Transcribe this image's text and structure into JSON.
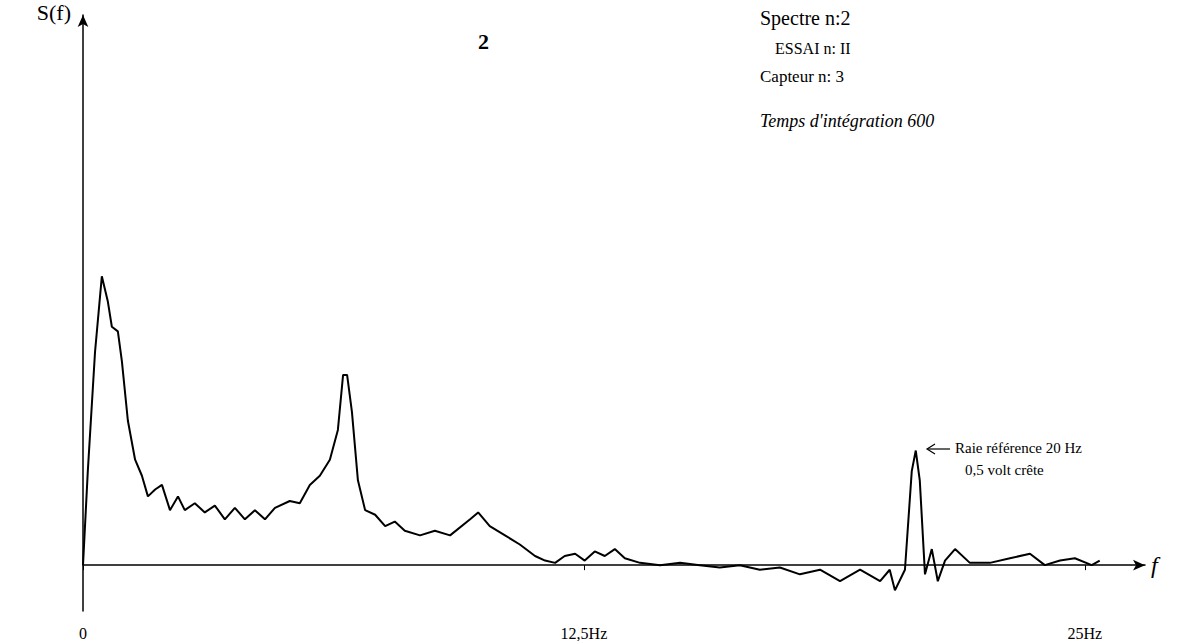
{
  "chart_data": {
    "type": "line",
    "x_label": "f",
    "y_label": "S(f)",
    "annotations": [
      "2",
      "Spectre n:2",
      "ESSAI n: II",
      "Capteur n: 3",
      "Temps d'intégration 600",
      "Raie référence 20 Hz",
      "0,5 volt crête"
    ],
    "x": [
      0,
      0.12,
      0.3,
      0.47,
      0.62,
      0.72,
      0.87,
      0.97,
      1.12,
      1.3,
      1.47,
      1.62,
      1.8,
      1.97,
      2.17,
      2.37,
      2.54,
      2.79,
      3.04,
      3.29,
      3.54,
      3.79,
      4.04,
      4.29,
      4.54,
      4.79,
      5.16,
      5.41,
      5.66,
      5.91,
      6.16,
      6.36,
      6.49,
      6.59,
      6.71,
      6.86,
      7.04,
      7.29,
      7.54,
      7.78,
      8.03,
      8.41,
      8.78,
      9.16,
      9.66,
      9.86,
      10.15,
      10.53,
      10.9,
      11.28,
      11.53,
      11.78,
      12.02,
      12.28,
      12.52,
      12.77,
      13.02,
      13.27,
      13.52,
      13.9,
      14.4,
      14.9,
      15.39,
      15.89,
      16.39,
      16.89,
      17.39,
      17.89,
      18.39,
      18.89,
      19.39,
      19.89,
      20.13,
      20.26,
      20.51,
      20.68,
      20.78,
      20.88,
      21.01,
      21.18,
      21.33,
      21.51,
      21.76,
      22.13,
      22.63,
      23.13,
      23.63,
      24.0,
      24.38,
      24.75,
      25.17,
      25.37
    ],
    "values": [
      0,
      0.41,
      0.93,
      1.26,
      1.15,
      1.04,
      1.02,
      0.89,
      0.63,
      0.46,
      0.39,
      0.3,
      0.33,
      0.35,
      0.24,
      0.3,
      0.24,
      0.27,
      0.23,
      0.26,
      0.2,
      0.25,
      0.2,
      0.24,
      0.2,
      0.25,
      0.28,
      0.27,
      0.35,
      0.39,
      0.46,
      0.59,
      0.83,
      0.83,
      0.67,
      0.37,
      0.24,
      0.22,
      0.17,
      0.19,
      0.15,
      0.13,
      0.15,
      0.13,
      0.2,
      0.23,
      0.17,
      0.13,
      0.09,
      0.04,
      0.02,
      0.01,
      0.04,
      0.05,
      0.02,
      0.06,
      0.04,
      0.07,
      0.03,
      0.01,
      0,
      0.01,
      0,
      -0.01,
      0,
      -0.02,
      -0.01,
      -0.04,
      -0.02,
      -0.07,
      -0.02,
      -0.07,
      -0.02,
      -0.11,
      -0.02,
      0.41,
      0.5,
      0.37,
      -0.04,
      0.07,
      -0.07,
      0.02,
      0.07,
      0.01,
      0.01,
      0.03,
      0.05,
      0,
      0.02,
      0.03,
      0,
      0.02
    ],
    "xlim": [
      0,
      26.5
    ],
    "ylim": [
      -0.2,
      2.4
    ],
    "xticks": [
      0,
      {
        "value": 12.5,
        "label": "12,5Hz"
      },
      {
        "value": 25,
        "label": "25Hz"
      }
    ],
    "color": "#000000",
    "grid": false,
    "tick_labels": "x",
    "marker": "none",
    "line_style": "solid"
  }
}
